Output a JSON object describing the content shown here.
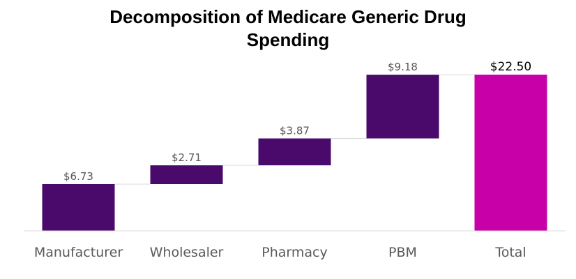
{
  "chart_data": {
    "type": "bar",
    "subtype": "waterfall",
    "title_lines": [
      "Decomposition of Medicare Generic  Drug",
      "Spending"
    ],
    "categories": [
      "Manufacturer",
      "Wholesaler",
      "Pharmacy",
      "PBM",
      "Total"
    ],
    "values": [
      6.73,
      2.71,
      3.87,
      9.18,
      22.5
    ],
    "data_labels": [
      "$6.73",
      "$2.71",
      "$3.87",
      "$9.18",
      "$22.50"
    ],
    "is_total": [
      false,
      false,
      false,
      false,
      true
    ],
    "ylim": [
      0,
      22.5
    ],
    "grid": false,
    "legend": "none",
    "colors": {
      "step": "#4a0a6b",
      "total": "#c800a8",
      "connector": "#d9d9d9",
      "axis": "#d9d9d9"
    }
  }
}
